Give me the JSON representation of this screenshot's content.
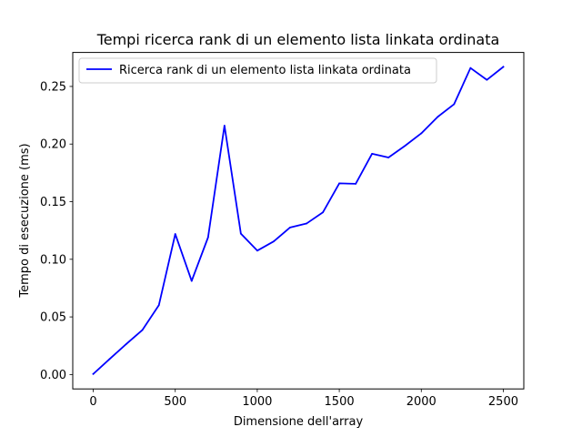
{
  "chart_data": {
    "type": "line",
    "title": "Tempi ricerca rank di un elemento lista linkata ordinata",
    "xlabel": "Dimensione dell'array",
    "ylabel": "Tempo di esecuzione (ms)",
    "xlim": [
      -125,
      2625
    ],
    "ylim": [
      -0.0125,
      0.2795
    ],
    "xticks": [
      0,
      500,
      1000,
      1500,
      2000,
      2500
    ],
    "xtick_labels": [
      "0",
      "500",
      "1000",
      "1500",
      "2000",
      "2500"
    ],
    "yticks": [
      0.0,
      0.05,
      0.1,
      0.15,
      0.2,
      0.25
    ],
    "ytick_labels": [
      "0.00",
      "0.05",
      "0.10",
      "0.15",
      "0.20",
      "0.25"
    ],
    "grid": false,
    "legend_position": "top-left",
    "series": [
      {
        "name": "Ricerca rank di un elemento lista linkata ordinata",
        "color": "#0000ff",
        "x": [
          0,
          100,
          200,
          300,
          400,
          500,
          600,
          700,
          800,
          900,
          1000,
          1100,
          1200,
          1300,
          1400,
          1500,
          1600,
          1700,
          1800,
          1900,
          2000,
          2100,
          2200,
          2300,
          2400,
          2500
        ],
        "y": [
          0.0005,
          0.0135,
          0.0263,
          0.0387,
          0.0601,
          0.1219,
          0.0812,
          0.119,
          0.216,
          0.1223,
          0.1075,
          0.1155,
          0.1276,
          0.131,
          0.1407,
          0.1659,
          0.1655,
          0.1916,
          0.1883,
          0.1984,
          0.2093,
          0.2236,
          0.2346,
          0.266,
          0.2557,
          0.267
        ]
      }
    ]
  }
}
